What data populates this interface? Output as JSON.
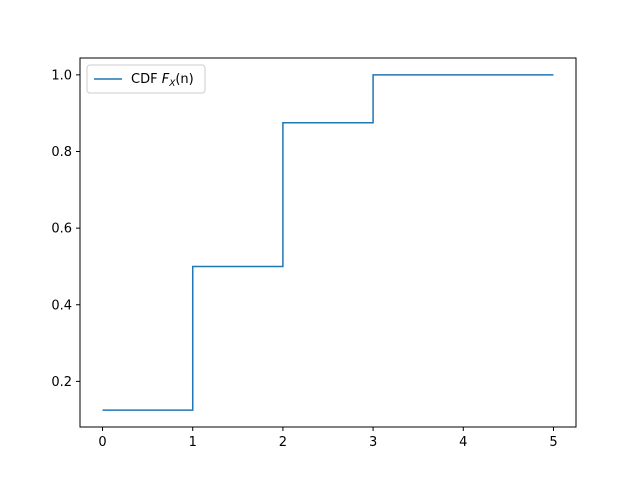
{
  "chart_data": {
    "type": "line",
    "step": "post",
    "x": [
      0,
      1,
      2,
      3,
      5
    ],
    "series": [
      {
        "name": "CDF F_X(n)",
        "legend_plain": "CDF ",
        "legend_math": "F",
        "legend_sub": "X",
        "legend_tail": "(n)",
        "color": "#1f77b4",
        "values": [
          0.125,
          0.5,
          0.875,
          1.0,
          1.0
        ]
      }
    ],
    "xlim": [
      -0.25,
      5.25
    ],
    "ylim": [
      0.081,
      1.044
    ],
    "xticks": [
      "0",
      "1",
      "2",
      "3",
      "4",
      "5"
    ],
    "xtick_values": [
      0,
      1,
      2,
      3,
      4,
      5
    ],
    "yticks": [
      "0.2",
      "0.4",
      "0.6",
      "0.8",
      "1.0"
    ],
    "ytick_values": [
      0.2,
      0.4,
      0.6,
      0.8,
      1.0
    ],
    "grid": false,
    "legend_position": "upper-left",
    "title": "",
    "xlabel": "",
    "ylabel": ""
  }
}
